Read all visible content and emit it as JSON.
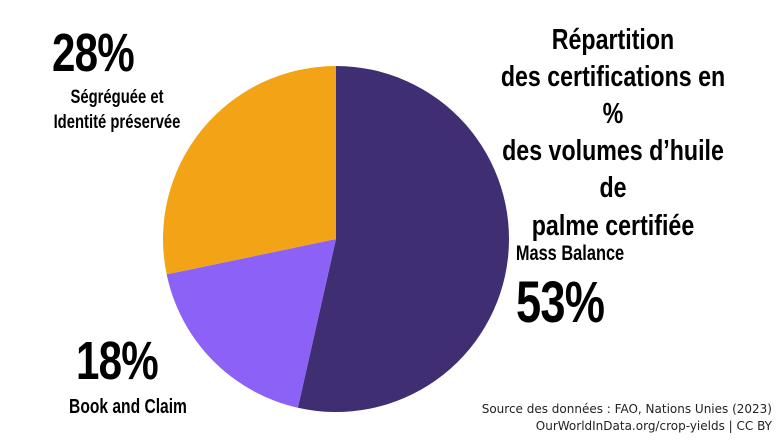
{
  "title_lines": [
    "Répartition",
    "des certifications en %",
    "des volumes d’huile de",
    "palme certifiée"
  ],
  "labels": {
    "mass_balance_pct": "53%",
    "mass_balance_name": "Mass Balance",
    "book_claim_pct": "18%",
    "book_claim_name": "Book and Claim",
    "segregated_pct": "28%",
    "segregated_name_line1": "Ségréguée et",
    "segregated_name_line2": "Identité préservée"
  },
  "source_lines": [
    "Source des données : FAO, Nations Unies (2023)",
    "OurWorldInData.org/crop-yields | CC BY"
  ],
  "chart_data": {
    "type": "pie",
    "title": "Répartition des certifications en % des volumes d’huile de palme certifiée",
    "slices": [
      {
        "label": "Mass Balance",
        "value": 53,
        "color": "#3f2e72"
      },
      {
        "label": "Book and Claim",
        "value": 18,
        "color": "#8b61f6"
      },
      {
        "label": "Ségréguée et Identité préservée",
        "value": 28,
        "color": "#f3a316"
      }
    ],
    "start": "top",
    "direction": "clockwise"
  }
}
